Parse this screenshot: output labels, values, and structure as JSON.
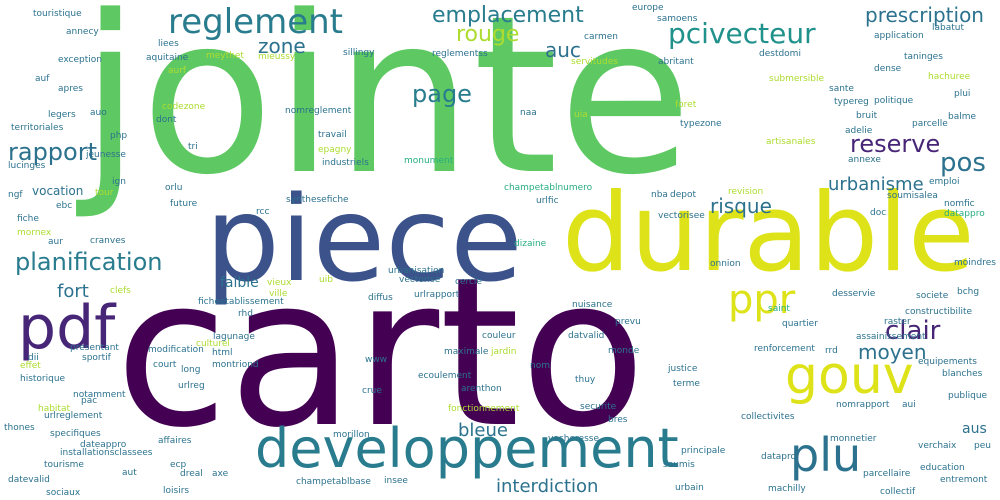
{
  "palette": {
    "c1": "#440154",
    "c2": "#3b528b",
    "c3": "#2c728e",
    "c4": "#21918c",
    "c5": "#28ae80",
    "c6": "#5ec962",
    "c7": "#addc30",
    "c8": "#dde318",
    "c9": "#482677",
    "c10": "#287c8e",
    "c11": "#3dbc74"
  },
  "words": {
    "carto": "carto",
    "jointe": "jointe",
    "piece": "piece",
    "durable": "durable",
    "pdf": "pdf",
    "developpement": "developpement",
    "gouv": "gouv",
    "reglement": "reglement",
    "plu": "plu",
    "ppr": "ppr",
    "planification": "planification",
    "rapport": "rapport",
    "reserve": "reserve",
    "page": "page",
    "emplacement": "emplacement",
    "pcivecteur": "pcivecteur",
    "prescription": "prescription",
    "clair": "clair",
    "pos": "pos",
    "zone": "zone",
    "rouge": "rouge",
    "auc": "auc",
    "moyen": "moyen",
    "risque": "risque",
    "urbanisme": "urbanisme",
    "interdiction": "interdiction",
    "bleue": "bleue",
    "fort": "fort",
    "faible": "faible",
    "vocation": "vocation",
    "aus": "aus",
    "touristique": "touristique",
    "annecy": "annecy",
    "liees": "liees",
    "exception": "exception",
    "aquitaine": "aquitaine",
    "aurf": "aurf",
    "meythet": "meythet",
    "mieussy": "mieussy",
    "sillingy": "sillingy",
    "carmen": "carmen",
    "servitudes": "servitudes",
    "europe": "europe",
    "samoens": "samoens",
    "abritant": "abritant",
    "destdomi": "destdomi",
    "application": "application",
    "labatut": "labatut",
    "taninges": "taninges",
    "dense": "dense",
    "hachuree": "hachuree",
    "plui": "plui",
    "politique": "politique",
    "balme": "balme",
    "parcelle": "parcelle",
    "sante": "sante",
    "typereg": "typereg",
    "bruit": "bruit",
    "adelie": "adelie",
    "annexe": "annexe",
    "emploi": "emploi",
    "soumisalea": "soumisalea",
    "nomfic": "nomfic",
    "datappro": "datappro",
    "moindres": "moindres",
    "auf": "auf",
    "apres": "apres",
    "legers": "legers",
    "auo": "auo",
    "territoriales": "territoriales",
    "lucinges": "lucinges",
    "php": "php",
    "jeunesse": "jeunesse",
    "tri": "tri",
    "codezone": "codezone",
    "dont": "dont",
    "nomreglement": "nomreglement",
    "travail": "travail",
    "epagny": "epagny",
    "industriels": "industriels",
    "reglementss": "reglementss",
    "naa": "naa",
    "uia": "uia",
    "foret": "foret",
    "typezone": "typezone",
    "artisanales": "artisanales",
    "submersible": "submersible",
    "monument": "monument",
    "ign": "ign",
    "ngf": "ngf",
    "tour": "tour",
    "orlu": "orlu",
    "ebc": "ebc",
    "future": "future",
    "synthesefiche": "synthesefiche",
    "champetablnumero": "champetablnumero",
    "nba": "nba",
    "depot": "depot",
    "revision": "revision",
    "urlfic": "urlfic",
    "vectorisee": "vectorisee",
    "fiche": "fiche",
    "mornex": "mornex",
    "rcc": "rcc",
    "aur": "aur",
    "cranves": "cranves",
    "dizaine": "dizaine",
    "onnion": "onnion",
    "doc": "doc",
    "vieux": "vieux",
    "ville": "ville",
    "clefs": "clefs",
    "uib": "uib",
    "urbanisation": "urbanisation",
    "vectorise": "vectorise",
    "cercle": "cercle",
    "urlrapport": "urlrapport",
    "diffus": "diffus",
    "ficheetablissement": "ficheetablissement",
    "rhd": "rhd",
    "nuisance": "nuisance",
    "prevu": "prevu",
    "desservie": "desservie",
    "saint": "saint",
    "societe": "societe",
    "bchg": "bchg",
    "constructibilite": "constructibilite",
    "quartier": "quartier",
    "raster": "raster",
    "lagunage": "lagunage",
    "culturel": "culturel",
    "couleur": "couleur",
    "datvalid": "datvalid",
    "assainissement": "assainissement",
    "presentant": "presentant",
    "modification": "modification",
    "dii": "dii",
    "sportif": "sportif",
    "effet": "effet",
    "html": "html",
    "montriond": "montriond",
    "www": "www",
    "maximale": "maximale",
    "jardin": "jardin",
    "monde": "monde",
    "renforcement": "renforcement",
    "rrd": "rrd",
    "equipements": "equipements",
    "court": "court",
    "nom": "nom",
    "historique": "historique",
    "blanches": "blanches",
    "notamment": "notamment",
    "long": "long",
    "ecoulement": "ecoulement",
    "justice": "justice",
    "pac": "pac",
    "urlreg": "urlreg",
    "crue": "crue",
    "arenthon": "arenthon",
    "thuy": "thuy",
    "terme": "terme",
    "habitat": "habitat",
    "publique": "publique",
    "urlreglement": "urlreglement",
    "nomrapport": "nomrapport",
    "aui": "aui",
    "thones": "thones",
    "specifiques": "specifiques",
    "fonctionnement": "fonctionnement",
    "securite": "securite",
    "collectivites": "collectivites",
    "bres": "bres",
    "dateappro": "dateappro",
    "morillon": "morillon",
    "vacheresse": "vacheresse",
    "installationsclassees": "installationsclassees",
    "affaires": "affaires",
    "principale": "principale",
    "datapro": "datapro",
    "monnetier": "monnetier",
    "verchaix": "verchaix",
    "peu": "peu",
    "tourisme": "tourisme",
    "ecp": "ecp",
    "soumis": "soumis",
    "education": "education",
    "aut": "aut",
    "axe": "axe",
    "dreal": "dreal",
    "parcellaire": "parcellaire",
    "datevalid": "datevalid",
    "entremont": "entremont",
    "champetablbase": "champetablbase",
    "insee": "insee",
    "urbain": "urbain",
    "machilly": "machilly",
    "sociaux": "sociaux",
    "loisirs": "loisirs",
    "collectif": "collectif"
  }
}
